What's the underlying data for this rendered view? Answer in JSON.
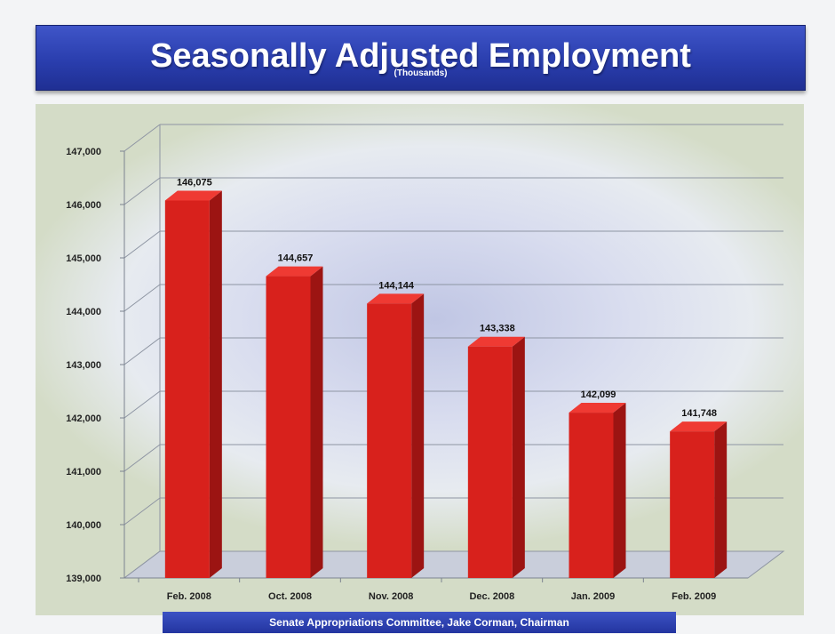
{
  "header": {
    "title": "Seasonally Adjusted Employment",
    "subtitle": "(Thousands)"
  },
  "footer": {
    "text": "Senate Appropriations Committee, Jake Corman, Chairman"
  },
  "colors": {
    "bar_front": "#d8211c",
    "bar_side": "#9c1412",
    "bar_top": "#ef3a33",
    "banner": "#2a3eae"
  },
  "chart_data": {
    "type": "bar",
    "title": "Seasonally Adjusted Employment",
    "subtitle": "(Thousands)",
    "categories": [
      "Feb. 2008",
      "Oct. 2008",
      "Nov. 2008",
      "Dec. 2008",
      "Jan. 2009",
      "Feb. 2009"
    ],
    "values": [
      146075,
      144657,
      144144,
      143338,
      142099,
      141748
    ],
    "data_labels": [
      "146,075",
      "144,657",
      "144,144",
      "143,338",
      "142,099",
      "141,748"
    ],
    "yticks": [
      139000,
      140000,
      141000,
      142000,
      143000,
      144000,
      145000,
      146000,
      147000
    ],
    "ytick_labels": [
      "139,000",
      "140,000",
      "141,000",
      "142,000",
      "143,000",
      "144,000",
      "145,000",
      "146,000",
      "147,000"
    ],
    "ylim": [
      139000,
      147000
    ],
    "xlabel": "",
    "ylabel": "",
    "grid": true,
    "legend": "none",
    "style": "3d"
  }
}
